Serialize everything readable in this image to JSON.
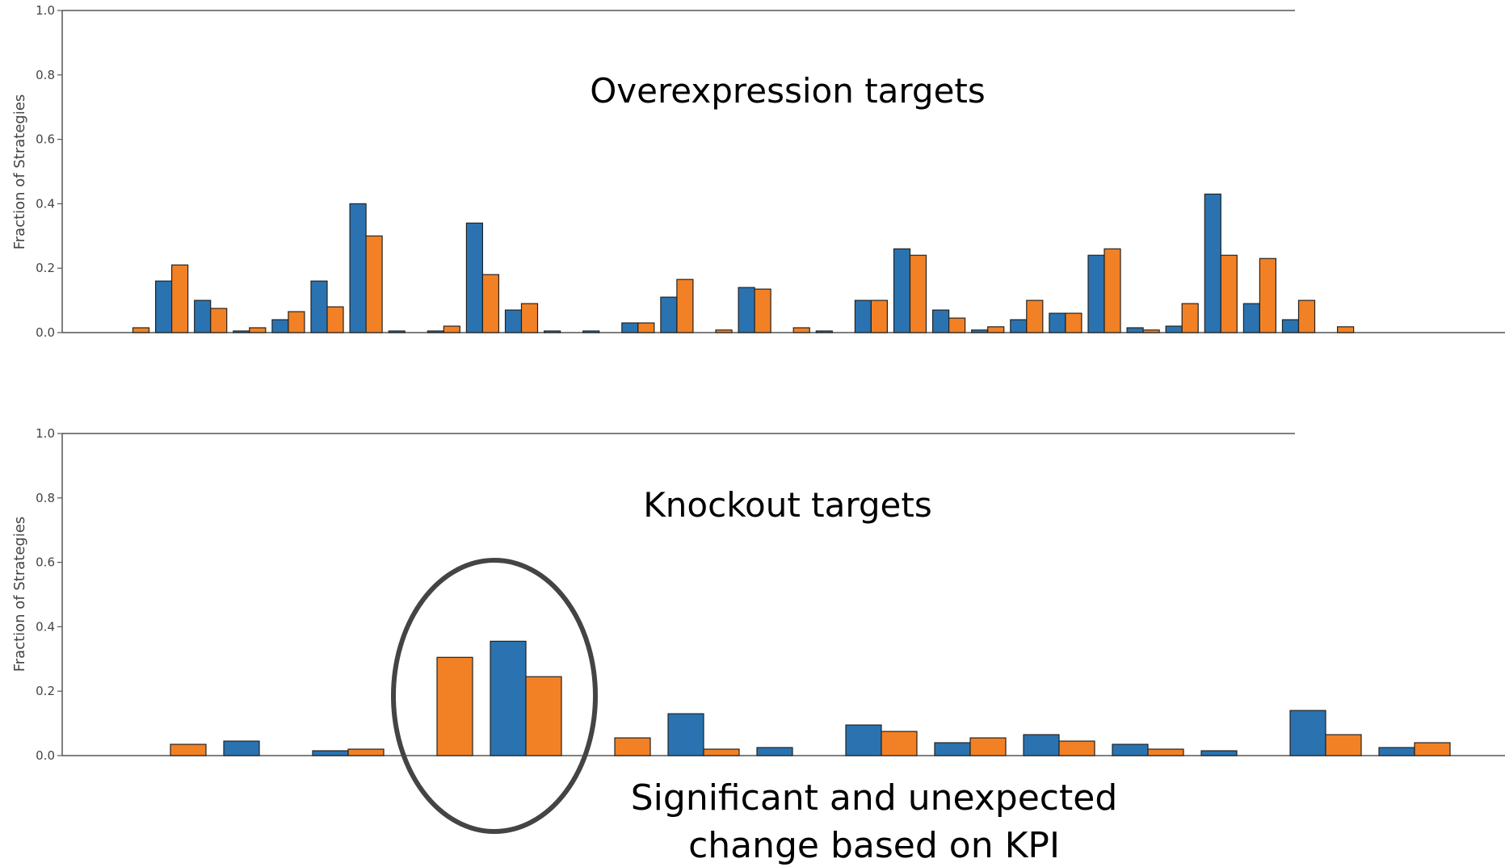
{
  "colors": {
    "series_a": "#2a73b0",
    "series_b": "#f28125",
    "axis": "#555555",
    "bar_edge": "#222222",
    "ellipse": "#444444"
  },
  "chart_data": [
    {
      "type": "bar",
      "title": "Overexpression targets",
      "ylabel": "Fraction of Strategies",
      "ylim": [
        0,
        1.0
      ],
      "yticks": [
        "0.0",
        "0.2",
        "0.4",
        "0.6",
        "0.8",
        "1.0"
      ],
      "grid": false,
      "series": [
        {
          "values": [
            0,
            0.16,
            0.1,
            0.005,
            0.04,
            0.16,
            0.4,
            0.005,
            0.005,
            0.34,
            0.07,
            0.005,
            0.005,
            0.03,
            0.11,
            0,
            0.14,
            0,
            0.005,
            0.1,
            0.26,
            0.07,
            0.008,
            0.04,
            0.06,
            0.24,
            0.015,
            0.02,
            0.43,
            0.09,
            0.04,
            0
          ]
        },
        {
          "values": [
            0.015,
            0.21,
            0.075,
            0.015,
            0.065,
            0.08,
            0.3,
            0,
            0.02,
            0.18,
            0.09,
            0,
            0,
            0.03,
            0.165,
            0.008,
            0.135,
            0.015,
            0,
            0.1,
            0.24,
            0.045,
            0.018,
            0.1,
            0.06,
            0.26,
            0.008,
            0.09,
            0.24,
            0.23,
            0.1,
            0.018
          ]
        }
      ]
    },
    {
      "type": "bar",
      "title": "Knockout targets",
      "ylabel": "Fraction of Strategies",
      "ylim": [
        0,
        1.0
      ],
      "yticks": [
        "0.0",
        "0.2",
        "0.4",
        "0.6",
        "0.8",
        "1.0"
      ],
      "grid": false,
      "series": [
        {
          "values": [
            0,
            0.045,
            0.015,
            0,
            0.355,
            0,
            0.13,
            0.025,
            0.095,
            0.04,
            0.065,
            0.035,
            0.015,
            0.14,
            0.025
          ]
        },
        {
          "values": [
            0.035,
            0,
            0.02,
            0.305,
            0.245,
            0.055,
            0.02,
            0,
            0.075,
            0.055,
            0.045,
            0.02,
            0,
            0.065,
            0.04
          ]
        }
      ],
      "annotation": {
        "lines": [
          "Significant and unexpected",
          "change based on KPI"
        ],
        "highlight": "ellipse"
      }
    }
  ]
}
